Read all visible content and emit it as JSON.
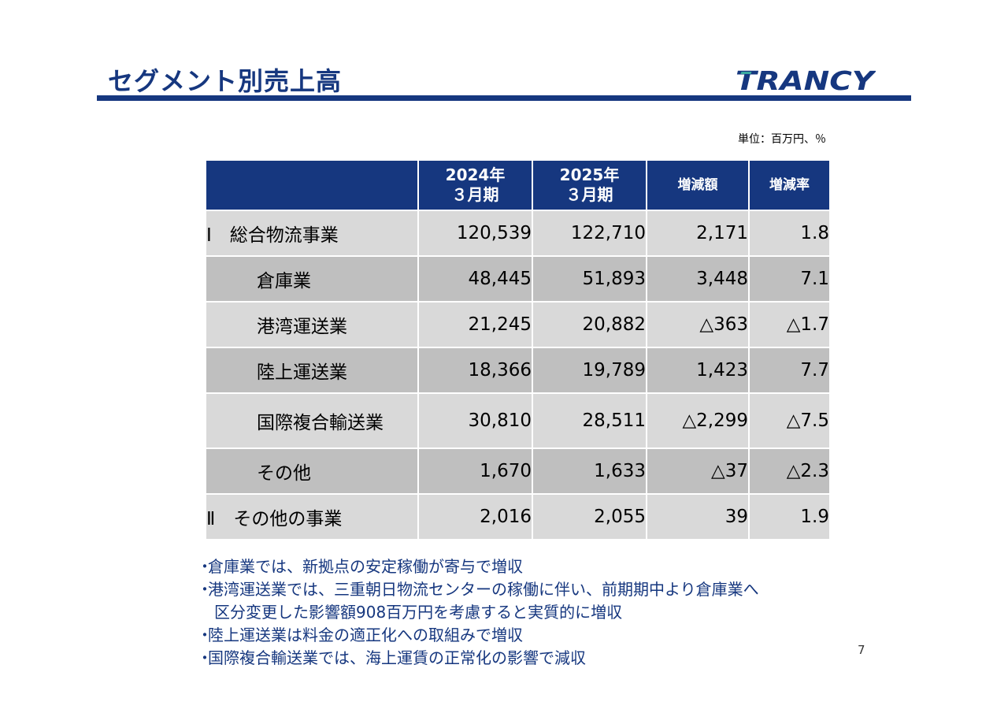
{
  "header": {
    "title": "セグメント別売上高",
    "logo_text": "TRANCY"
  },
  "unit_label": "単位：百万円、％",
  "table": {
    "columns": [
      {
        "line1": "2024年",
        "line2": "３月期"
      },
      {
        "line1": "2025年",
        "line2": "３月期"
      },
      {
        "line1": "増減額",
        "line2": ""
      },
      {
        "line1": "増減率",
        "line2": ""
      }
    ],
    "rows": [
      {
        "name": "Ⅰ　総合物流事業",
        "v2024": "120,539",
        "v2025": "122,710",
        "diff": "2,171",
        "rate": "1.8"
      },
      {
        "name": "倉庫業",
        "v2024": "48,445",
        "v2025": "51,893",
        "diff": "3,448",
        "rate": "7.1"
      },
      {
        "name": "港湾運送業",
        "v2024": "21,245",
        "v2025": "20,882",
        "diff": "△363",
        "rate": "△1.7"
      },
      {
        "name": "陸上運送業",
        "v2024": "18,366",
        "v2025": "19,789",
        "diff": "1,423",
        "rate": "7.7"
      },
      {
        "name": "国際複合輸送業",
        "v2024": "30,810",
        "v2025": "28,511",
        "diff": "△2,299",
        "rate": "△7.5"
      },
      {
        "name": "その他",
        "v2024": "1,670",
        "v2025": "1,633",
        "diff": "△37",
        "rate": "△2.3"
      },
      {
        "name": "Ⅱ　その他の事業",
        "v2024": "2,016",
        "v2025": "2,055",
        "diff": "39",
        "rate": "1.9"
      }
    ]
  },
  "notes": {
    "bullet": "・",
    "items": [
      "倉庫業では、新拠点の安定稼働が寄与で増収",
      "港湾運送業では、三重朝日物流センターの稼働に伴い、前期期中より倉庫業へ",
      "区分変更した影響額908百万円を考慮すると実質的に増収",
      "陸上運送業は料金の適正化への取組みで増収",
      "国際複合輸送業では、海上運賃の正常化の影響で減収"
    ]
  },
  "page_number": "7",
  "colors": {
    "brand_navy": "#16377f",
    "row_light": "#d9d9d9",
    "row_dark": "#bfbfbf",
    "logo_teal": "#3aa9a0"
  }
}
